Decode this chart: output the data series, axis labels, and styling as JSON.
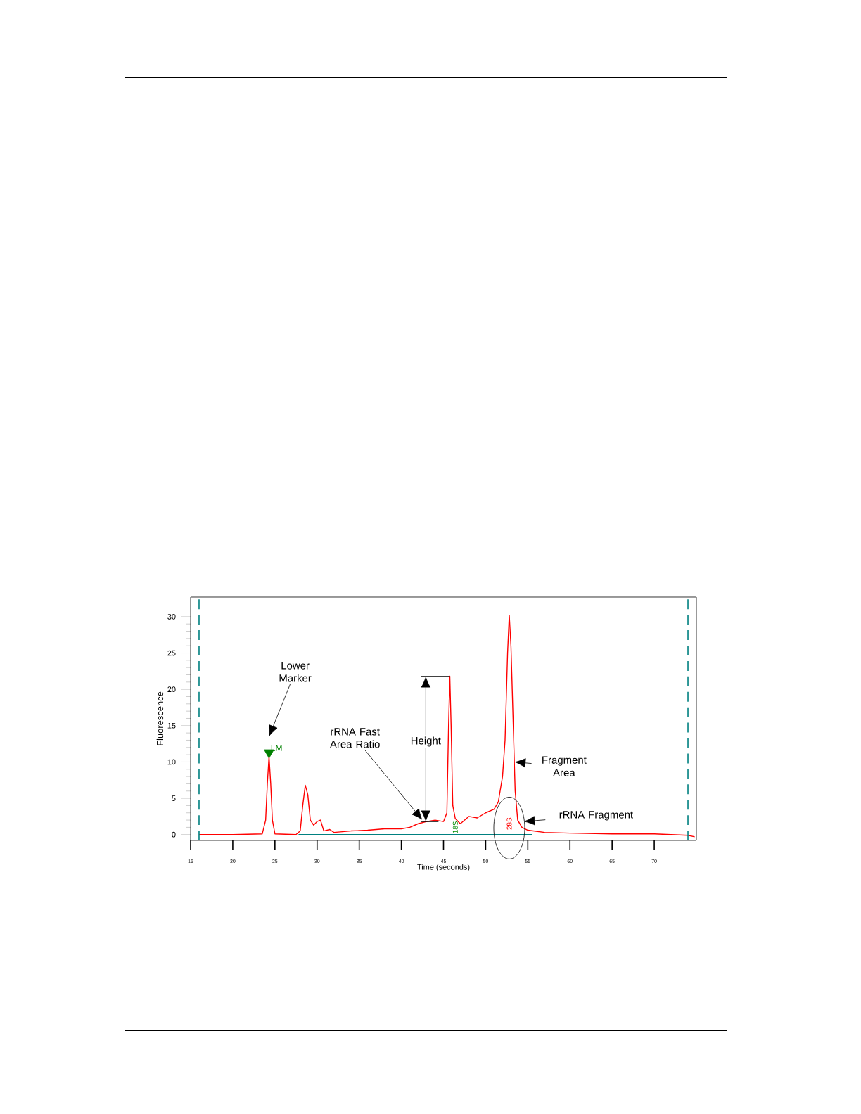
{
  "chart_data": {
    "type": "line",
    "xlabel": "Time (seconds)",
    "ylabel": "Fluorescence",
    "xlim": [
      15,
      75
    ],
    "ylim": [
      -0.8,
      32.7
    ],
    "xticks": [
      15,
      20,
      25,
      30,
      35,
      40,
      45,
      50,
      55,
      60,
      65,
      70
    ],
    "yticks": [
      0,
      5,
      10,
      15,
      20,
      25,
      30
    ],
    "grid": false,
    "series": [
      {
        "color": "#ff0000",
        "x": [
          16,
          20,
          23.5,
          23.9,
          24.1,
          24.3,
          24.5,
          24.7,
          25.0,
          27.5,
          28.0,
          28.3,
          28.6,
          28.9,
          29.2,
          29.6,
          30.0,
          30.4,
          30.8,
          31.5,
          32,
          34,
          36,
          38,
          40,
          41,
          42,
          43,
          44,
          45,
          45.4,
          45.6,
          45.75,
          45.9,
          46.1,
          46.4,
          47,
          48,
          49,
          50,
          51,
          51.5,
          52,
          52.3,
          52.6,
          52.8,
          53.0,
          53.3,
          53.5,
          53.8,
          54.3,
          55,
          57,
          60,
          65,
          70,
          74,
          74.8
        ],
        "values": [
          0,
          0,
          0.1,
          2,
          7,
          10.8,
          7,
          2,
          0.1,
          0,
          0.5,
          4,
          6.8,
          5.5,
          2,
          1.3,
          1.8,
          2.0,
          0.5,
          0.7,
          0.3,
          0.5,
          0.6,
          0.8,
          0.8,
          1.0,
          1.5,
          1.8,
          2.0,
          1.8,
          3,
          15,
          21.8,
          15,
          4,
          2.2,
          1.5,
          2.5,
          2.3,
          3.0,
          3.5,
          4.5,
          8,
          13,
          25,
          30.2,
          26,
          14,
          6,
          2,
          1,
          0.6,
          0.3,
          0.2,
          0.1,
          0.1,
          -0.1,
          -0.3
        ]
      },
      {
        "color": "#008080",
        "x": [
          27.8,
          55.5
        ],
        "values": [
          0,
          0
        ]
      },
      {
        "type": "scatter",
        "name": "LM",
        "color": "#008000",
        "marker": "triangle",
        "x": [
          24.3
        ],
        "values": [
          11.3
        ]
      }
    ],
    "ref_lines": [
      {
        "axis": "x",
        "value": 16,
        "color": "#008080",
        "line_style": "dashed"
      },
      {
        "axis": "x",
        "value": 74,
        "color": "#008080",
        "line_style": "dashed"
      }
    ],
    "annotations": [
      "Lower Marker",
      "rRNA Fast Area Ratio",
      "Height",
      {
        "text": "Fragment Area",
        "x": 53.4,
        "y": 10
      },
      "rRNA Fragment",
      "18S",
      "28S"
    ]
  }
}
